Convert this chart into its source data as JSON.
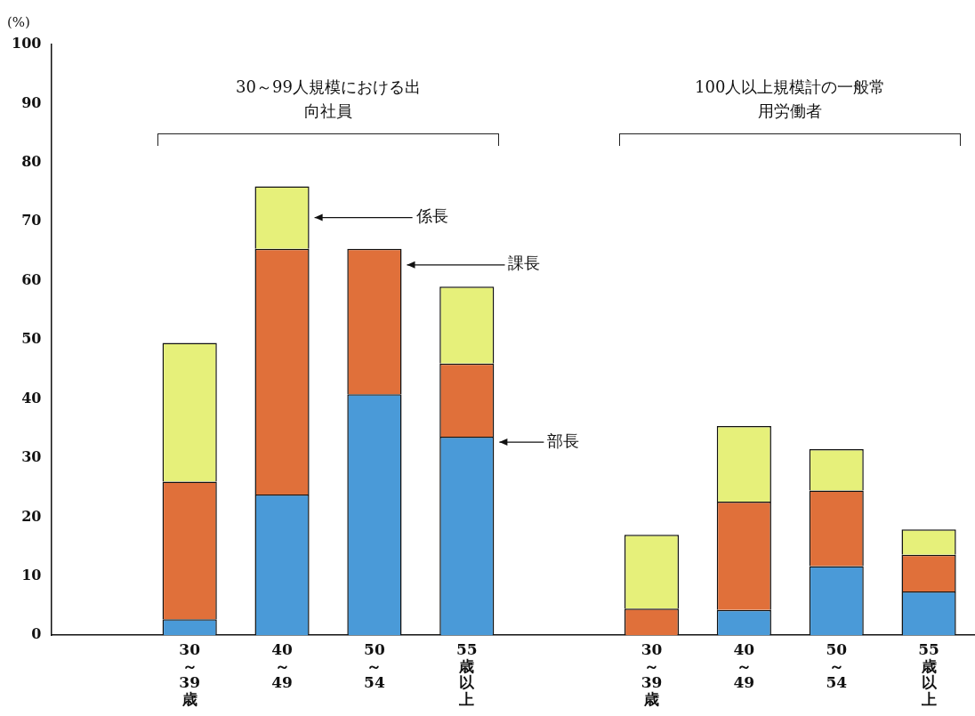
{
  "chart_data": {
    "type": "bar",
    "stacked": true,
    "ylabel": "(%)",
    "categories": [
      null,
      "30～39歳",
      "40～49",
      "50～54",
      "55歳以上",
      null,
      "30～39歳",
      "40～49",
      "50～54",
      "55歳以上"
    ],
    "series": [
      {
        "name": "部長",
        "color": "#4a9ad8",
        "values": [
          null,
          2.7,
          23.8,
          40.8,
          33.6,
          null,
          0,
          4.3,
          11.7,
          7.4
        ]
      },
      {
        "name": "課長",
        "color": "#e0703a",
        "values": [
          null,
          23.3,
          41.6,
          24.6,
          12.4,
          null,
          4.5,
          18.3,
          12.8,
          6.2
        ]
      },
      {
        "name": "係長",
        "color": "#e6f07a",
        "values": [
          null,
          23.5,
          10.6,
          0,
          13,
          null,
          12.5,
          12.8,
          7,
          4.3
        ]
      }
    ],
    "ylim": [
      0,
      100
    ],
    "yticks": [
      0,
      10,
      20,
      30,
      40,
      50,
      60,
      70,
      80,
      90,
      100
    ],
    "grid": false,
    "legend": false,
    "annotations": [
      "30～99人規模における出向社員",
      "100人以上規模計の一般常用労働者"
    ]
  }
}
